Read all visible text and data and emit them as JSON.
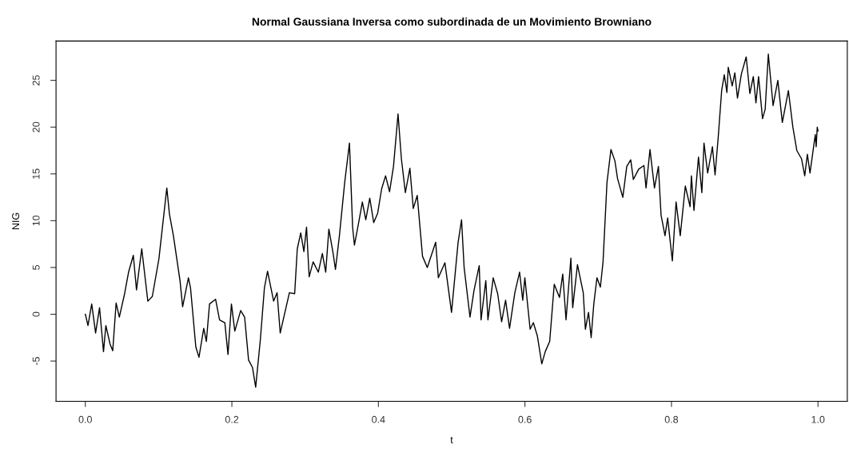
{
  "chart_data": {
    "type": "line",
    "title": "Normal Gaussiana Inversa como subordinada de un Movimiento Browniano",
    "xlabel": "t",
    "ylabel": "NIG",
    "xlim": [
      -0.04,
      1.04
    ],
    "ylim": [
      -9.3,
      29.2
    ],
    "xticks": [
      {
        "value": 0,
        "label": "0.0"
      },
      0.2,
      0.4,
      0.6,
      0.8,
      {
        "value": 1,
        "label": "1.0"
      }
    ],
    "yticks": [
      -5,
      0,
      5,
      10,
      15,
      20,
      25
    ],
    "marker": "none",
    "line_style": "solid",
    "series": [
      {
        "color": "#000000",
        "x": [
          0.0,
          0.0036,
          0.0087,
          0.014,
          0.0194,
          0.0248,
          0.028,
          0.0338,
          0.0374,
          0.042,
          0.0464,
          0.0536,
          0.059,
          0.0655,
          0.0698,
          0.077,
          0.0853,
          0.0914,
          0.1004,
          0.1112,
          0.1148,
          0.1202,
          0.1292,
          0.1328,
          0.1407,
          0.1436,
          0.1508,
          0.1551,
          0.1616,
          0.1652,
          0.1695,
          0.1778,
          0.1832,
          0.1904,
          0.1947,
          0.1994,
          0.204,
          0.212,
          0.2174,
          0.2228,
          0.2282,
          0.2325,
          0.239,
          0.2444,
          0.2487,
          0.257,
          0.2617,
          0.266,
          0.2785,
          0.2857,
          0.2893,
          0.294,
          0.2983,
          0.3019,
          0.3055,
          0.3109,
          0.318,
          0.3235,
          0.3281,
          0.3324,
          0.3378,
          0.3414,
          0.3468,
          0.354,
          0.3605,
          0.3648,
          0.3673,
          0.3738,
          0.3781,
          0.3828,
          0.3882,
          0.3936,
          0.399,
          0.4044,
          0.4098,
          0.4152,
          0.4206,
          0.4268,
          0.4314,
          0.4368,
          0.443,
          0.4476,
          0.453,
          0.4602,
          0.4667,
          0.4782,
          0.4818,
          0.4908,
          0.4998,
          0.5088,
          0.5135,
          0.517,
          0.525,
          0.5304,
          0.5376,
          0.5401,
          0.5466,
          0.5495,
          0.5567,
          0.5628,
          0.5682,
          0.5736,
          0.579,
          0.5862,
          0.5927,
          0.597,
          0.5999,
          0.6071,
          0.6115,
          0.6169,
          0.623,
          0.6277,
          0.6338,
          0.64,
          0.6472,
          0.6516,
          0.6561,
          0.6627,
          0.6652,
          0.6717,
          0.6796,
          0.6825,
          0.6868,
          0.6904,
          0.694,
          0.6983,
          0.703,
          0.7066,
          0.712,
          0.7174,
          0.7228,
          0.7264,
          0.7336,
          0.739,
          0.7444,
          0.748,
          0.7552,
          0.7624,
          0.7653,
          0.7707,
          0.7768,
          0.7822,
          0.7858,
          0.7912,
          0.7948,
          0.8012,
          0.8063,
          0.812,
          0.8189,
          0.8254,
          0.8272,
          0.8307,
          0.8369,
          0.8415,
          0.8444,
          0.8494,
          0.8559,
          0.8595,
          0.8638,
          0.8685,
          0.8721,
          0.8757,
          0.8775,
          0.8829,
          0.8865,
          0.8901,
          0.8955,
          0.902,
          0.907,
          0.9117,
          0.9153,
          0.9189,
          0.9243,
          0.9279,
          0.9322,
          0.9387,
          0.9452,
          0.9513,
          0.9596,
          0.9657,
          0.9711,
          0.9776,
          0.9819,
          0.9855,
          0.9891,
          0.9963,
          0.9975,
          0.999,
          1.0
        ],
        "values": [
          0,
          -1.2,
          1.1,
          -2.0,
          0.7,
          -4.0,
          -1.2,
          -3.2,
          -3.9,
          1.2,
          -0.3,
          2.2,
          4.5,
          6.3,
          2.6,
          7.0,
          1.4,
          1.9,
          5.9,
          13.5,
          10.7,
          8.4,
          3.6,
          0.8,
          3.9,
          2.8,
          -3.5,
          -4.6,
          -1.5,
          -2.9,
          1.1,
          1.6,
          -0.6,
          -0.9,
          -4.3,
          1.1,
          -1.8,
          0.4,
          -0.3,
          -4.9,
          -5.7,
          -7.8,
          -2.6,
          2.8,
          4.6,
          1.4,
          2.3,
          -2.0,
          2.3,
          2.2,
          7.0,
          8.7,
          6.7,
          9.3,
          4.0,
          5.6,
          4.5,
          6.5,
          4.5,
          9.1,
          6.7,
          4.8,
          8.4,
          14.1,
          18.3,
          9.3,
          7.4,
          10.1,
          12.0,
          10.1,
          12.4,
          9.8,
          10.8,
          13.4,
          14.8,
          13.1,
          15.8,
          21.4,
          16.6,
          13.0,
          15.6,
          11.3,
          12.7,
          6.2,
          5.0,
          7.7,
          3.9,
          5.5,
          0.2,
          7.7,
          10.1,
          5.0,
          -0.3,
          2.5,
          5.2,
          -0.6,
          3.6,
          -0.6,
          3.9,
          2.2,
          -0.8,
          1.5,
          -1.5,
          2.3,
          4.5,
          1.5,
          3.9,
          -1.6,
          -0.9,
          -2.3,
          -5.3,
          -4.0,
          -2.9,
          3.2,
          1.8,
          4.3,
          -0.6,
          6.0,
          0.7,
          5.3,
          2.3,
          -1.6,
          0.2,
          -2.5,
          1.1,
          3.9,
          2.9,
          5.6,
          14.1,
          17.6,
          16.4,
          14.5,
          12.5,
          15.8,
          16.5,
          14.4,
          15.5,
          15.9,
          13.5,
          17.6,
          13.5,
          15.8,
          10.6,
          8.4,
          10.3,
          5.7,
          12.0,
          8.4,
          13.7,
          11.5,
          14.8,
          11.1,
          16.8,
          13.0,
          18.3,
          15.1,
          17.9,
          14.9,
          18.9,
          23.9,
          25.6,
          23.7,
          26.4,
          24.4,
          25.8,
          23.1,
          25.7,
          27.5,
          23.6,
          25.4,
          22.6,
          25.4,
          20.9,
          21.9,
          27.8,
          22.3,
          25.0,
          20.5,
          23.9,
          20.0,
          17.5,
          16.6,
          14.8,
          17.1,
          15.1,
          19.2,
          17.9,
          20.0,
          19.6
        ]
      }
    ]
  }
}
